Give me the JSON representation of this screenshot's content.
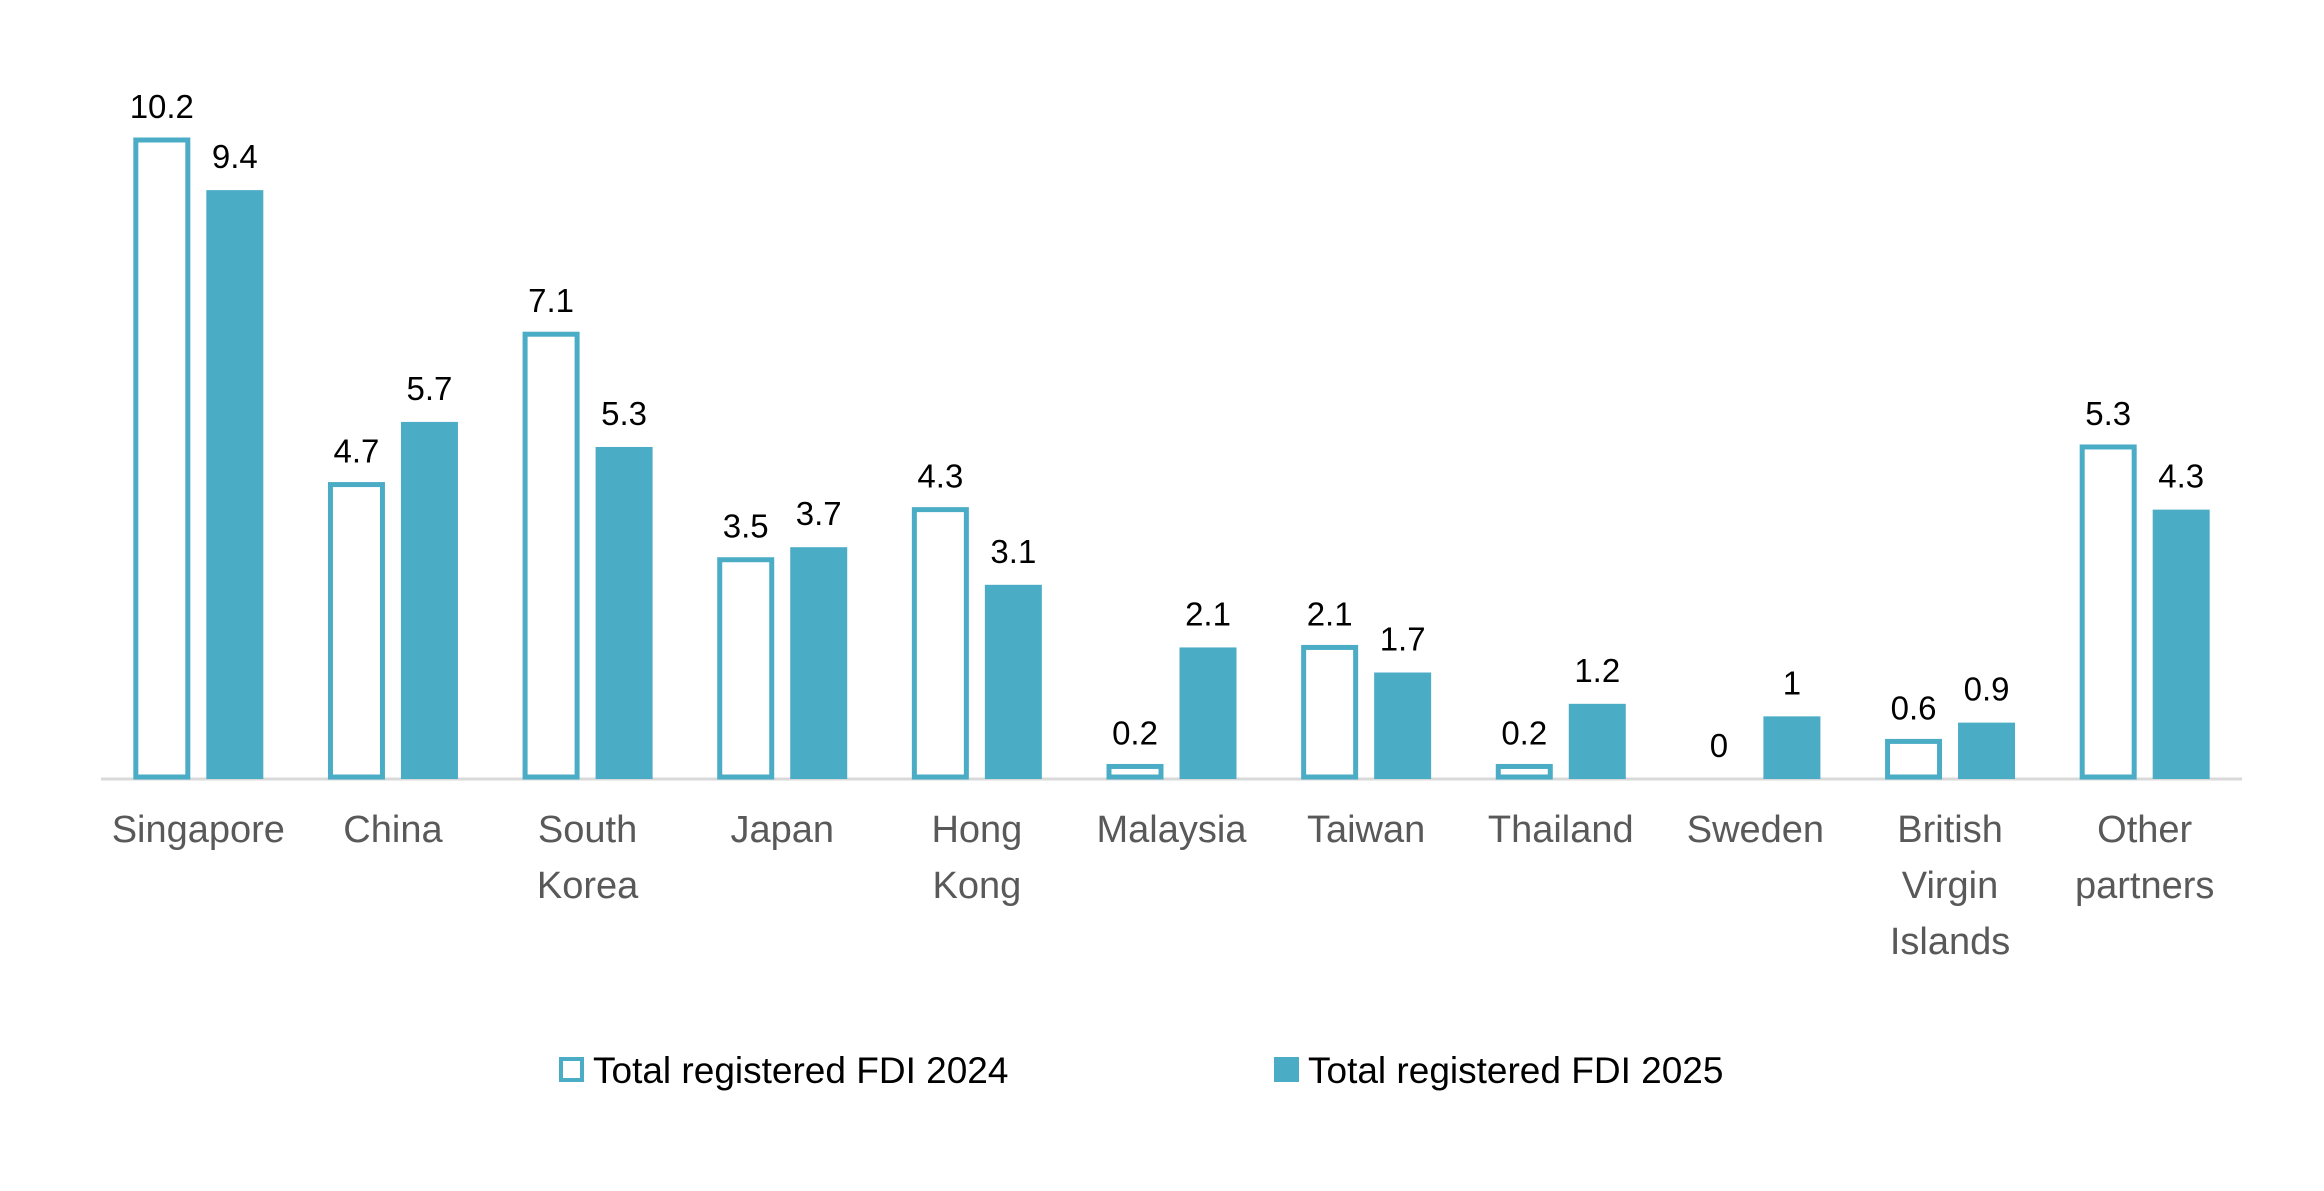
{
  "chart_data": {
    "type": "bar",
    "categories": [
      "Singapore",
      "China",
      "South Korea",
      "Japan",
      "Hong Kong",
      "Malaysia",
      "Taiwan",
      "Thailand",
      "Sweden",
      "British Virgin Islands",
      "Other partners"
    ],
    "series": [
      {
        "name": "Total registered FDI 2024",
        "color": "#4BACC6",
        "filled": false,
        "values": [
          10.2,
          4.7,
          7.1,
          3.5,
          4.3,
          0.2,
          2.1,
          0.2,
          0,
          0.6,
          5.3
        ]
      },
      {
        "name": "Total registered FDI 2025",
        "color": "#4BACC6",
        "filled": true,
        "values": [
          9.4,
          5.7,
          5.3,
          3.7,
          3.1,
          2.1,
          1.7,
          1.2,
          1,
          0.9,
          4.3
        ]
      }
    ],
    "legend": "bottom"
  }
}
